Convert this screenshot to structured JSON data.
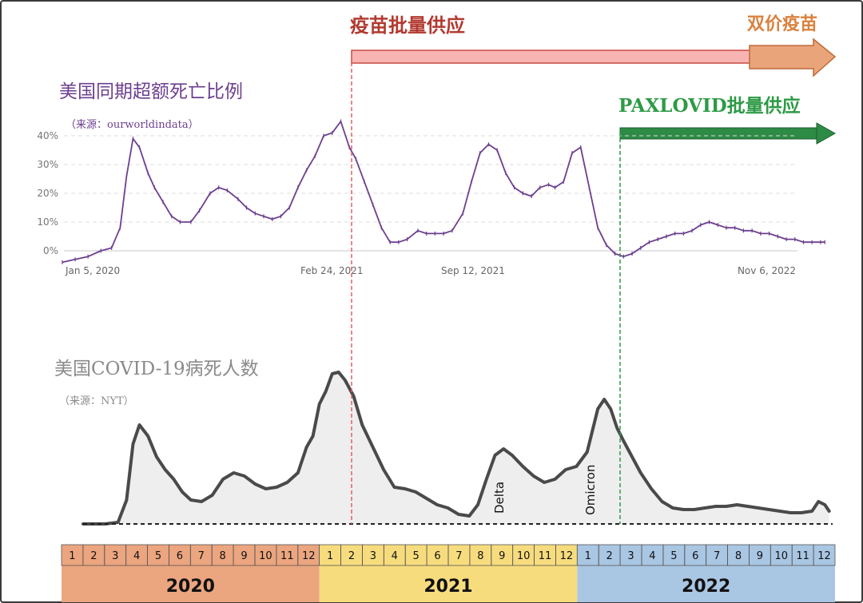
{
  "top": {
    "vaccine_label": "疫苗批量供应",
    "bivalent_label": "双价疫苗",
    "paxlovid_label": "PAXLOVID批量供应",
    "colors": {
      "vaccine_bar": "#f8b4b2",
      "vaccine_arrow": "#e9a47a",
      "paxlovid": "#2e8b45"
    }
  },
  "chart_data": [
    {
      "type": "line",
      "title": "美国同期超额死亡比例",
      "source": "（来源：ourworldindata）",
      "y_ticks": [
        "40%",
        "30%",
        "20%",
        "10%",
        "0%"
      ],
      "x_tick_labels": [
        "Jan 5, 2020",
        "Feb 24, 2021",
        "Sep 12, 2021",
        "Nov 6, 2022"
      ],
      "ylim": [
        -5,
        45
      ],
      "grid": true,
      "color": "#6d3f8f",
      "x_months_since_jan2020": [
        0,
        0.6,
        1.2,
        1.8,
        2.3,
        2.7,
        3.0,
        3.3,
        3.6,
        4.0,
        4.3,
        4.7,
        5.1,
        5.5,
        6.0,
        6.4,
        6.9,
        7.3,
        7.7,
        8.2,
        8.6,
        9.0,
        9.4,
        9.8,
        10.2,
        10.6,
        11.0,
        11.4,
        11.8,
        12.2,
        12.6,
        13.0,
        13.4,
        13.7,
        14.1,
        14.5,
        14.9,
        15.3,
        15.7,
        16.1,
        16.6,
        17.0,
        17.4,
        17.8,
        18.2,
        18.7,
        19.1,
        19.5,
        19.9,
        20.3,
        20.7,
        21.1,
        21.5,
        21.9,
        22.3,
        22.7,
        23.0,
        23.4,
        23.8,
        24.2,
        24.6,
        25.0,
        25.4,
        25.8,
        26.2,
        26.6,
        27.0,
        27.4,
        27.8,
        28.2,
        28.6,
        29.0,
        29.4,
        29.8,
        30.2,
        30.6,
        31.0,
        31.4,
        31.8,
        32.2,
        32.6,
        33.0,
        33.4,
        33.8,
        34.2,
        34.6,
        35.0,
        35.4,
        35.6
      ],
      "values": [
        -4,
        -3,
        -2,
        0,
        1,
        8,
        26,
        39,
        36,
        27,
        22,
        17,
        12,
        10,
        10,
        14,
        20,
        22,
        21,
        18,
        15,
        13,
        12,
        11,
        12,
        15,
        22,
        28,
        33,
        40,
        41,
        45,
        36,
        32,
        24,
        16,
        8,
        3,
        3,
        4,
        7,
        6,
        6,
        6,
        7,
        13,
        24,
        34,
        37,
        35,
        27,
        22,
        20,
        19,
        22,
        23,
        22,
        24,
        34,
        36,
        22,
        8,
        2,
        -1,
        -2,
        -1,
        1,
        3,
        4,
        5,
        6,
        6,
        7,
        9,
        10,
        9,
        8,
        8,
        7,
        7,
        6,
        6,
        5,
        4,
        4,
        3,
        3,
        3,
        3
      ]
    },
    {
      "type": "area",
      "title": "美国COVID-19病死人数",
      "source": "（来源：NYT）",
      "color": "#4a4a4a",
      "fill": "#eeeeee",
      "relative_scale_max": 100,
      "annotations": [
        "Delta",
        "Omicron"
      ],
      "x_months_since_jan2020": [
        0,
        1.0,
        2.0,
        2.6,
        3.0,
        3.3,
        3.6,
        4.0,
        4.4,
        4.8,
        5.2,
        5.6,
        6.0,
        6.5,
        7.0,
        7.5,
        8.0,
        8.5,
        9.0,
        9.5,
        10.0,
        10.5,
        11.0,
        11.4,
        11.7,
        12.0,
        12.3,
        12.6,
        12.9,
        13.2,
        13.6,
        14.0,
        14.5,
        15.0,
        15.5,
        16.0,
        16.5,
        17.0,
        17.5,
        18.0,
        18.5,
        19.0,
        19.4,
        19.8,
        20.2,
        20.6,
        21.0,
        21.5,
        22.0,
        22.5,
        23.0,
        23.5,
        24.0,
        24.5,
        25.0,
        25.3,
        25.6,
        25.9,
        26.2,
        26.6,
        27.0,
        27.5,
        28.0,
        28.5,
        29.0,
        29.5,
        30.0,
        30.5,
        31.0,
        31.5,
        32.0,
        32.5,
        33.0,
        33.5,
        34.0,
        34.5,
        35.0,
        35.3,
        35.6,
        35.8
      ],
      "values": [
        0,
        0,
        0,
        1,
        15,
        50,
        62,
        55,
        42,
        34,
        28,
        20,
        15,
        14,
        18,
        28,
        32,
        30,
        25,
        22,
        23,
        26,
        32,
        48,
        55,
        75,
        83,
        94,
        95,
        90,
        80,
        62,
        48,
        34,
        23,
        22,
        20,
        16,
        12,
        10,
        6,
        5,
        12,
        28,
        43,
        47,
        43,
        36,
        30,
        26,
        28,
        34,
        36,
        45,
        72,
        78,
        72,
        60,
        52,
        42,
        32,
        22,
        14,
        10,
        9,
        9,
        10,
        11,
        11,
        12,
        11,
        10,
        9,
        8,
        7,
        7,
        8,
        14,
        12,
        8
      ]
    }
  ],
  "timeline": {
    "months": [
      "1",
      "2",
      "3",
      "4",
      "5",
      "6",
      "7",
      "8",
      "9",
      "10",
      "11",
      "12"
    ],
    "years": [
      {
        "label": "2020",
        "color": "#eba57f"
      },
      {
        "label": "2021",
        "color": "#f7dc7e"
      },
      {
        "label": "2022",
        "color": "#a9c6e3"
      }
    ]
  }
}
